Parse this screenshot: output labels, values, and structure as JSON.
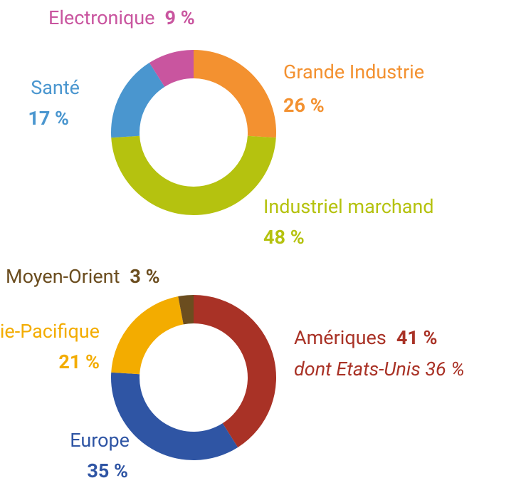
{
  "chart_data": [
    {
      "type": "pie",
      "donut": true,
      "categories": [
        "Grande Industrie",
        "Industriel marchand",
        "Santé",
        "Electronique"
      ],
      "values": [
        26,
        48,
        17,
        9
      ],
      "value_labels": [
        "26 %",
        "48 %",
        "17 %",
        "9 %"
      ],
      "colors": [
        "#f39130",
        "#b5c20f",
        "#4a96cf",
        "#c9559f"
      ]
    },
    {
      "type": "pie",
      "donut": true,
      "categories": [
        "Amériques",
        "Europe",
        "Asie-Pacifique",
        "Moyen-Orient"
      ],
      "values": [
        41,
        35,
        21,
        3
      ],
      "value_labels": [
        "41 %",
        "35 %",
        "21 %",
        "3 %"
      ],
      "colors": [
        "#a93226",
        "#2f55a4",
        "#f3ac00",
        "#6b4d1f"
      ],
      "annotation": "dont Etats-Unis 36 %"
    }
  ]
}
